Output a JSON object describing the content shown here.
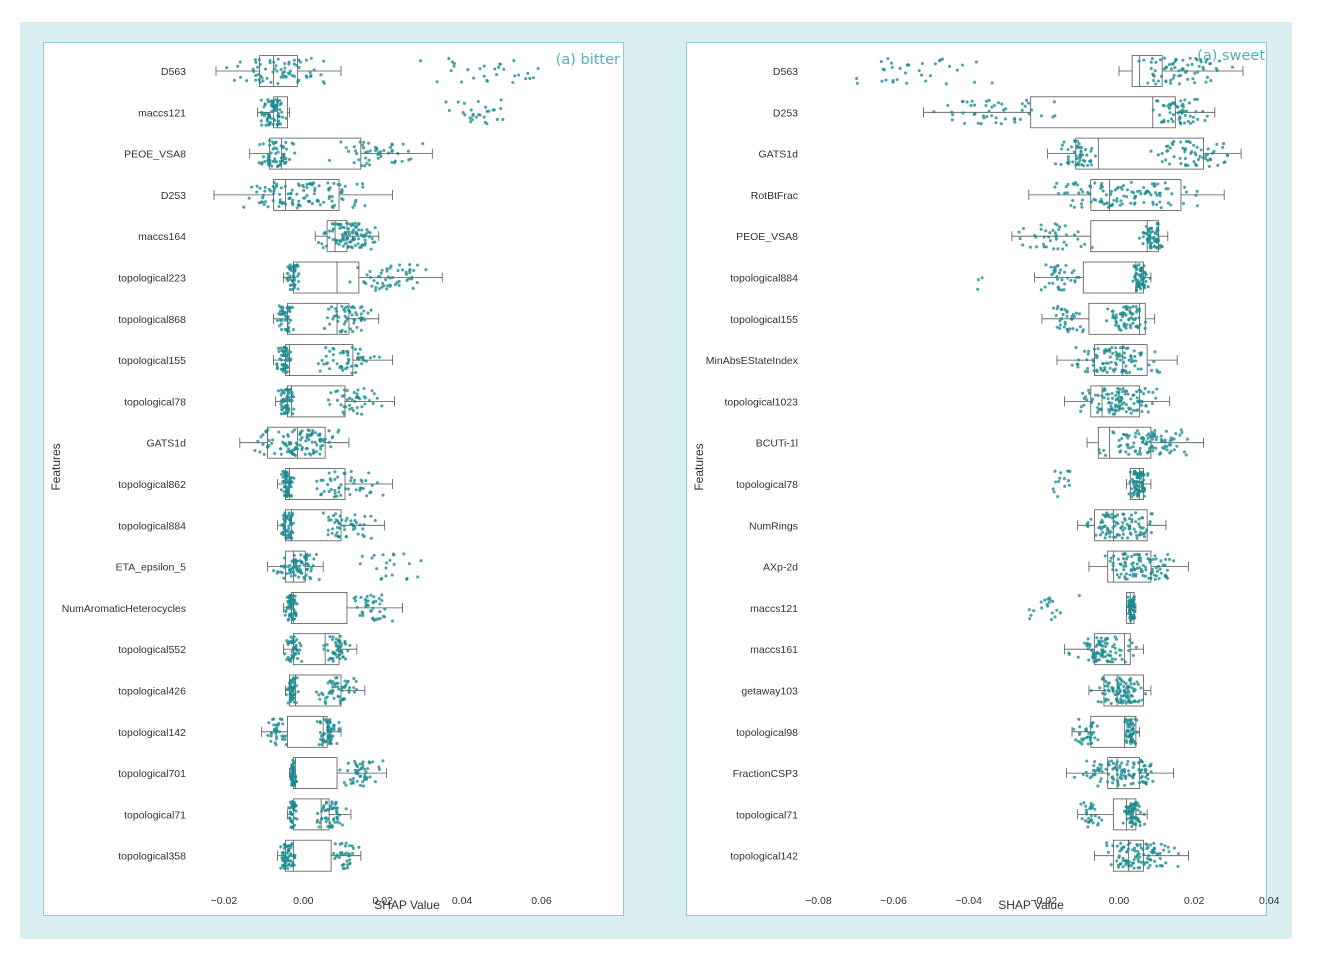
{
  "colors": {
    "frame": "#d9eef0",
    "panel_border": "#8ccfd3",
    "points": "#1a8a8f",
    "box": "#555555",
    "title": "#4bb3b9"
  },
  "chart_data": [
    {
      "type": "box-strip",
      "title": "(a) bitter",
      "xlabel": "SHAP Value",
      "ylabel": "Features",
      "xlim": [
        -0.0225,
        0.075
      ],
      "xticks": [
        -0.02,
        0.0,
        0.02,
        0.04,
        0.06
      ],
      "xtick_labels": [
        "−0.02",
        "0.00",
        "0.02",
        "0.04",
        "0.06"
      ],
      "grid": false,
      "series": [
        {
          "feature": "D563",
          "whisker_low": -0.022,
          "q1": -0.011,
          "median": -0.0075,
          "q3": -0.0015,
          "whisker_high": 0.0095,
          "point_min": -0.022,
          "point_max": 0.071,
          "clusters": [
            [
              -0.022,
              0.0095,
              70
            ],
            [
              0.023,
              0.071,
              30
            ]
          ]
        },
        {
          "feature": "maccs121",
          "whisker_low": -0.0115,
          "q1": -0.0075,
          "median": -0.0065,
          "q3": -0.004,
          "whisker_high": -0.0035,
          "point_min": -0.0115,
          "point_max": 0.057,
          "clusters": [
            [
              -0.0115,
              -0.0035,
              70
            ],
            [
              0.033,
              0.057,
              28
            ]
          ]
        },
        {
          "feature": "PEOE_VSA8",
          "whisker_low": -0.0135,
          "q1": -0.0085,
          "median": -0.0055,
          "q3": 0.0145,
          "whisker_high": 0.0325,
          "point_min": -0.0135,
          "point_max": 0.0325,
          "clusters": [
            [
              -0.0135,
              -0.0005,
              60
            ],
            [
              0.004,
              0.0325,
              50
            ]
          ]
        },
        {
          "feature": "D253",
          "whisker_low": -0.0225,
          "q1": -0.0075,
          "median": -0.0045,
          "q3": 0.009,
          "whisker_high": 0.0225,
          "point_min": -0.0225,
          "point_max": 0.0225,
          "clusters": [
            [
              -0.0225,
              0.0225,
              110
            ]
          ]
        },
        {
          "feature": "maccs164",
          "whisker_low": 0.003,
          "q1": 0.006,
          "median": 0.008,
          "q3": 0.011,
          "whisker_high": 0.019,
          "point_min": 0.003,
          "point_max": 0.02,
          "clusters": [
            [
              0.003,
              0.02,
              100
            ]
          ]
        },
        {
          "feature": "topological223",
          "whisker_low": -0.005,
          "q1": -0.0025,
          "median": 0.0085,
          "q3": 0.014,
          "whisker_high": 0.035,
          "point_min": -0.005,
          "point_max": 0.035,
          "clusters": [
            [
              -0.005,
              0.0,
              45
            ],
            [
              0.008,
              0.035,
              55
            ]
          ]
        },
        {
          "feature": "topological868",
          "whisker_low": -0.0075,
          "q1": -0.004,
          "median": 0.0085,
          "q3": 0.0115,
          "whisker_high": 0.019,
          "point_min": -0.0075,
          "point_max": 0.019,
          "clusters": [
            [
              -0.0075,
              -0.002,
              45
            ],
            [
              0.003,
              0.019,
              55
            ]
          ]
        },
        {
          "feature": "topological155",
          "whisker_low": -0.0075,
          "q1": -0.0045,
          "median": -0.0035,
          "q3": 0.0125,
          "whisker_high": 0.0225,
          "point_min": -0.0075,
          "point_max": 0.0225,
          "clusters": [
            [
              -0.0075,
              -0.002,
              50
            ],
            [
              0.0,
              0.0225,
              55
            ]
          ]
        },
        {
          "feature": "topological78",
          "whisker_low": -0.007,
          "q1": -0.004,
          "median": -0.003,
          "q3": 0.0105,
          "whisker_high": 0.023,
          "point_min": -0.007,
          "point_max": 0.023,
          "clusters": [
            [
              -0.007,
              -0.002,
              55
            ],
            [
              0.003,
              0.023,
              45
            ]
          ]
        },
        {
          "feature": "GATS1d",
          "whisker_low": -0.016,
          "q1": -0.009,
          "median": -0.0015,
          "q3": 0.0055,
          "whisker_high": 0.0115,
          "point_min": -0.016,
          "point_max": 0.0115,
          "clusters": [
            [
              -0.016,
              0.0115,
              110
            ]
          ]
        },
        {
          "feature": "topological862",
          "whisker_low": -0.0065,
          "q1": -0.0045,
          "median": -0.0035,
          "q3": 0.0105,
          "whisker_high": 0.0225,
          "point_min": -0.0065,
          "point_max": 0.0225,
          "clusters": [
            [
              -0.0065,
              -0.002,
              55
            ],
            [
              0.0,
              0.0225,
              50
            ]
          ]
        },
        {
          "feature": "topological884",
          "whisker_low": -0.0065,
          "q1": -0.0045,
          "median": -0.003,
          "q3": 0.0095,
          "whisker_high": 0.0205,
          "point_min": -0.0065,
          "point_max": 0.0205,
          "clusters": [
            [
              -0.0065,
              -0.002,
              55
            ],
            [
              0.002,
              0.0205,
              50
            ]
          ]
        },
        {
          "feature": "ETA_epsilon_5",
          "whisker_low": -0.009,
          "q1": -0.0045,
          "median": -0.0025,
          "q3": 0.0005,
          "whisker_high": 0.005,
          "point_min": -0.009,
          "point_max": 0.0375,
          "clusters": [
            [
              -0.009,
              0.005,
              80
            ],
            [
              0.007,
              0.0375,
              22
            ]
          ]
        },
        {
          "feature": "NumAromaticHeterocycles",
          "whisker_low": -0.005,
          "q1": -0.003,
          "median": -0.0025,
          "q3": 0.011,
          "whisker_high": 0.025,
          "point_min": -0.005,
          "point_max": 0.025,
          "clusters": [
            [
              -0.005,
              -0.001,
              55
            ],
            [
              0.01,
              0.025,
              40
            ]
          ]
        },
        {
          "feature": "topological552",
          "whisker_low": -0.005,
          "q1": -0.0025,
          "median": 0.0055,
          "q3": 0.009,
          "whisker_high": 0.0135,
          "point_min": -0.005,
          "point_max": 0.0135,
          "clusters": [
            [
              -0.005,
              0.0,
              45
            ],
            [
              0.004,
              0.0135,
              50
            ]
          ]
        },
        {
          "feature": "topological426",
          "whisker_low": -0.0045,
          "q1": -0.0035,
          "median": -0.002,
          "q3": 0.0095,
          "whisker_high": 0.0155,
          "point_min": -0.0045,
          "point_max": 0.0155,
          "clusters": [
            [
              -0.0045,
              -0.001,
              50
            ],
            [
              0.0,
              0.0155,
              55
            ]
          ]
        },
        {
          "feature": "topological142",
          "whisker_low": -0.0105,
          "q1": -0.004,
          "median": 0.005,
          "q3": 0.006,
          "whisker_high": 0.0095,
          "point_min": -0.0105,
          "point_max": 0.0095,
          "clusters": [
            [
              -0.0105,
              -0.0025,
              35
            ],
            [
              0.003,
              0.0095,
              60
            ]
          ]
        },
        {
          "feature": "topological701",
          "whisker_low": -0.0035,
          "q1": -0.0025,
          "median": -0.002,
          "q3": 0.0085,
          "whisker_high": 0.021,
          "point_min": -0.0035,
          "point_max": 0.021,
          "clusters": [
            [
              -0.0035,
              -0.0015,
              50
            ],
            [
              0.008,
              0.021,
              50
            ]
          ]
        },
        {
          "feature": "topological71",
          "whisker_low": -0.004,
          "q1": -0.0025,
          "median": 0.0045,
          "q3": 0.0065,
          "whisker_high": 0.012,
          "point_min": -0.004,
          "point_max": 0.012,
          "clusters": [
            [
              -0.004,
              -0.001,
              40
            ],
            [
              0.002,
              0.012,
              55
            ]
          ]
        },
        {
          "feature": "topological358",
          "whisker_low": -0.0065,
          "q1": -0.0045,
          "median": -0.0025,
          "q3": 0.007,
          "whisker_high": 0.0145,
          "point_min": -0.0065,
          "point_max": 0.0145,
          "clusters": [
            [
              -0.0065,
              -0.0015,
              55
            ],
            [
              0.006,
              0.0145,
              35
            ]
          ]
        }
      ]
    },
    {
      "type": "box-strip",
      "title": "(a) sweet",
      "xlabel": "SHAP Value",
      "ylabel": "Features",
      "xlim": [
        -0.0825,
        0.037
      ],
      "xticks": [
        -0.08,
        -0.06,
        -0.04,
        -0.02,
        0.0,
        0.02,
        0.04
      ],
      "xtick_labels": [
        "−0.08",
        "−0.06",
        "−0.04",
        "−0.02",
        "0.00",
        "0.02",
        "0.04"
      ],
      "grid": false,
      "series": [
        {
          "feature": "D563",
          "whisker_low": 0.0,
          "q1": 0.0035,
          "median": 0.0055,
          "q3": 0.0115,
          "whisker_high": 0.033,
          "point_min": -0.0785,
          "point_max": 0.036,
          "clusters": [
            [
              -0.0785,
              -0.0235,
              35
            ],
            [
              0.0,
              0.036,
              70
            ]
          ]
        },
        {
          "feature": "D253",
          "whisker_low": -0.052,
          "q1": -0.0235,
          "median": 0.009,
          "q3": 0.015,
          "whisker_high": 0.0255,
          "point_min": -0.052,
          "point_max": 0.0255,
          "clusters": [
            [
              -0.052,
              -0.012,
              50
            ],
            [
              0.006,
              0.0255,
              60
            ]
          ]
        },
        {
          "feature": "GATS1d",
          "whisker_low": -0.019,
          "q1": -0.0115,
          "median": -0.0055,
          "q3": 0.0225,
          "whisker_high": 0.0325,
          "point_min": -0.019,
          "point_max": 0.0325,
          "clusters": [
            [
              -0.019,
              -0.003,
              50
            ],
            [
              0.006,
              0.0325,
              60
            ]
          ]
        },
        {
          "feature": "RotBtFrac",
          "whisker_low": -0.024,
          "q1": -0.0075,
          "median": -0.0025,
          "q3": 0.0165,
          "whisker_high": 0.028,
          "point_min": -0.024,
          "point_max": 0.028,
          "clusters": [
            [
              -0.024,
              0.028,
              110
            ]
          ]
        },
        {
          "feature": "PEOE_VSA8",
          "whisker_low": -0.0285,
          "q1": -0.0075,
          "median": 0.0075,
          "q3": 0.0105,
          "whisker_high": 0.013,
          "point_min": -0.0285,
          "point_max": 0.013,
          "clusters": [
            [
              -0.0285,
              -0.006,
              40
            ],
            [
              0.005,
              0.013,
              60
            ]
          ]
        },
        {
          "feature": "topological884",
          "whisker_low": -0.0225,
          "q1": -0.0095,
          "median": 0.0045,
          "q3": 0.0065,
          "whisker_high": 0.0085,
          "point_min": -0.0385,
          "point_max": 0.0085,
          "clusters": [
            [
              -0.0385,
              -0.036,
              3
            ],
            [
              -0.0225,
              -0.0085,
              35
            ],
            [
              0.003,
              0.0085,
              60
            ]
          ]
        },
        {
          "feature": "topological155",
          "whisker_low": -0.0205,
          "q1": -0.008,
          "median": 0.0055,
          "q3": 0.007,
          "whisker_high": 0.0095,
          "point_min": -0.0205,
          "point_max": 0.0095,
          "clusters": [
            [
              -0.0205,
              -0.007,
              35
            ],
            [
              -0.005,
              0.0095,
              65
            ]
          ]
        },
        {
          "feature": "MinAbsEStateIndex",
          "whisker_low": -0.0165,
          "q1": -0.0065,
          "median": 0.001,
          "q3": 0.0075,
          "whisker_high": 0.0155,
          "point_min": -0.0165,
          "point_max": 0.0155,
          "clusters": [
            [
              -0.0165,
              0.0155,
              100
            ]
          ]
        },
        {
          "feature": "topological1023",
          "whisker_low": -0.0145,
          "q1": -0.0075,
          "median": -0.0045,
          "q3": 0.0055,
          "whisker_high": 0.0135,
          "point_min": -0.0145,
          "point_max": 0.0135,
          "clusters": [
            [
              -0.0145,
              0.0135,
              110
            ]
          ]
        },
        {
          "feature": "BCUTi-1l",
          "whisker_low": -0.0085,
          "q1": -0.0055,
          "median": -0.0025,
          "q3": 0.0085,
          "whisker_high": 0.0225,
          "point_min": -0.0085,
          "point_max": 0.0225,
          "clusters": [
            [
              -0.0085,
              0.0225,
              100
            ]
          ]
        },
        {
          "feature": "topological78",
          "whisker_low": 0.002,
          "q1": 0.003,
          "median": 0.0055,
          "q3": 0.0065,
          "whisker_high": 0.0085,
          "point_min": -0.0185,
          "point_max": 0.0085,
          "clusters": [
            [
              -0.0185,
              -0.0105,
              15
            ],
            [
              0.002,
              0.0085,
              80
            ]
          ]
        },
        {
          "feature": "NumRings",
          "whisker_low": -0.011,
          "q1": -0.0065,
          "median": -0.0015,
          "q3": 0.0075,
          "whisker_high": 0.0125,
          "point_min": -0.011,
          "point_max": 0.0125,
          "clusters": [
            [
              -0.011,
              0.0125,
              100
            ]
          ]
        },
        {
          "feature": "AXp-2d",
          "whisker_low": -0.008,
          "q1": -0.003,
          "median": -0.0015,
          "q3": 0.0085,
          "whisker_high": 0.0185,
          "point_min": -0.008,
          "point_max": 0.0185,
          "clusters": [
            [
              -0.008,
              0.0185,
              100
            ]
          ]
        },
        {
          "feature": "maccs121",
          "whisker_low": 0.002,
          "q1": 0.002,
          "median": 0.003,
          "q3": 0.004,
          "whisker_high": 0.0045,
          "point_min": -0.027,
          "point_max": 0.0045,
          "clusters": [
            [
              -0.027,
              -0.0095,
              20
            ],
            [
              0.002,
              0.0045,
              60
            ]
          ]
        },
        {
          "feature": "maccs161",
          "whisker_low": -0.0145,
          "q1": -0.0065,
          "median": 0.0015,
          "q3": 0.003,
          "whisker_high": 0.0065,
          "point_min": -0.0145,
          "point_max": 0.0065,
          "clusters": [
            [
              -0.0145,
              0.0065,
              90
            ]
          ]
        },
        {
          "feature": "getaway103",
          "whisker_low": -0.008,
          "q1": -0.004,
          "median": -0.0005,
          "q3": 0.0065,
          "whisker_high": 0.0085,
          "point_min": -0.008,
          "point_max": 0.0085,
          "clusters": [
            [
              -0.008,
              0.0085,
              100
            ]
          ]
        },
        {
          "feature": "topological98",
          "whisker_low": -0.0125,
          "q1": -0.0075,
          "median": 0.0015,
          "q3": 0.0045,
          "whisker_high": 0.0055,
          "point_min": -0.0125,
          "point_max": 0.0055,
          "clusters": [
            [
              -0.0125,
              -0.004,
              35
            ],
            [
              0.001,
              0.0055,
              55
            ]
          ]
        },
        {
          "feature": "FractionCSP3",
          "whisker_low": -0.014,
          "q1": -0.003,
          "median": -0.0005,
          "q3": 0.0055,
          "whisker_high": 0.0145,
          "point_min": -0.014,
          "point_max": 0.0145,
          "clusters": [
            [
              -0.014,
              0.0145,
              110
            ]
          ]
        },
        {
          "feature": "topological71",
          "whisker_low": -0.011,
          "q1": -0.0015,
          "median": 0.002,
          "q3": 0.0045,
          "whisker_high": 0.0075,
          "point_min": -0.011,
          "point_max": 0.0075,
          "clusters": [
            [
              -0.011,
              -0.004,
              30
            ],
            [
              0.0,
              0.0075,
              65
            ]
          ]
        },
        {
          "feature": "topological142",
          "whisker_low": -0.0065,
          "q1": -0.0015,
          "median": 0.0025,
          "q3": 0.0065,
          "whisker_high": 0.0185,
          "point_min": -0.0065,
          "point_max": 0.0185,
          "clusters": [
            [
              -0.0065,
              0.0185,
              100
            ]
          ]
        }
      ]
    }
  ]
}
